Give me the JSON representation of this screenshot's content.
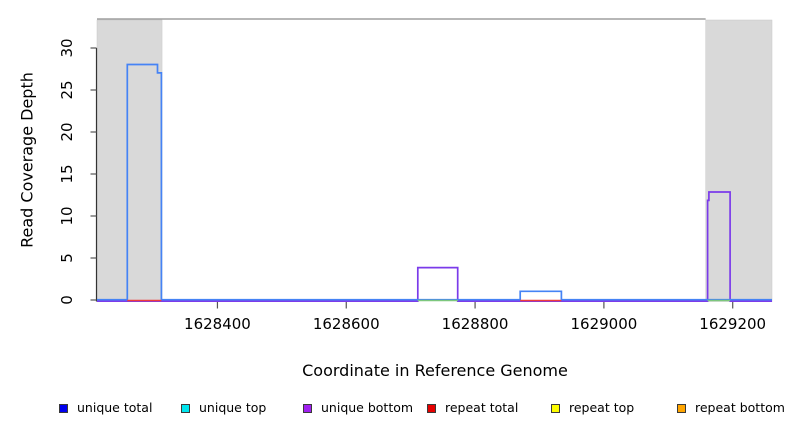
{
  "figure": {
    "x_axis_label": "Coordinate in Reference Genome",
    "y_axis_label": "Read Coverage Depth"
  },
  "chart_data": {
    "type": "line",
    "subtype": "genome-read-coverage-step-plot",
    "title": "",
    "xlabel": "Coordinate in Reference Genome",
    "ylabel": "Read Coverage Depth",
    "xlim": [
      1628213,
      1629261
    ],
    "ylim": [
      0,
      33.4
    ],
    "grid": false,
    "x_tick_values": [
      1628400,
      1628600,
      1628800,
      1629000,
      1629200
    ],
    "x_tick_labels": [
      "1628400",
      "1628600",
      "1628800",
      "1629000",
      "1629200"
    ],
    "y_tick_values": [
      0,
      5,
      10,
      15,
      20,
      25,
      30
    ],
    "y_tick_labels": [
      "0",
      "5",
      "10",
      "15",
      "20",
      "25",
      "30"
    ],
    "plot_border_top_color": "#8c8c8c",
    "axis_color": "#333333",
    "tick_color": "#555555",
    "shaded_region_color": "#d9d9d9",
    "shaded_regions": [
      {
        "name": "masked-region-left",
        "x0": 1628213,
        "x1": 1628314
      },
      {
        "name": "masked-region-right",
        "x0": 1629158,
        "x1": 1629261
      }
    ],
    "series": [
      {
        "name": "unique total",
        "color": "#4583f5",
        "points": [
          [
            1628213,
            0
          ],
          [
            1628260,
            0
          ],
          [
            1628260,
            28
          ],
          [
            1628307,
            28
          ],
          [
            1628307,
            27
          ],
          [
            1628313,
            27
          ],
          [
            1628313,
            0
          ],
          [
            1628870,
            0
          ],
          [
            1628870,
            1
          ],
          [
            1628934,
            1
          ],
          [
            1628934,
            0
          ],
          [
            1629261,
            0
          ]
        ]
      },
      {
        "name": "unique bottom",
        "color": "#7b3bea",
        "points": [
          [
            1628213,
            0
          ],
          [
            1628711,
            0
          ],
          [
            1628711,
            4
          ],
          [
            1628773,
            4
          ],
          [
            1628773,
            0
          ],
          [
            1629161,
            0
          ],
          [
            1629161,
            12
          ],
          [
            1629163,
            12
          ],
          [
            1629163,
            13
          ],
          [
            1629196,
            13
          ],
          [
            1629196,
            0
          ],
          [
            1629261,
            0
          ]
        ]
      }
    ],
    "zero_level_overlays": [
      {
        "color": "#ee3b3b",
        "x0": 1628260,
        "x1": 1628313
      },
      {
        "color": "#ee3b3b",
        "x0": 1628870,
        "x1": 1628934
      },
      {
        "color": "#7dc77d",
        "x0": 1628711,
        "x1": 1628773
      },
      {
        "color": "#7dc77d",
        "x0": 1629161,
        "x1": 1629196
      }
    ],
    "legend": {
      "position": "bottom",
      "items": [
        {
          "label": "unique total",
          "color": "#0000ee"
        },
        {
          "label": "unique top",
          "color": "#00e5ee"
        },
        {
          "label": "unique bottom",
          "color": "#a020f0"
        },
        {
          "label": "repeat total",
          "color": "#e60000"
        },
        {
          "label": "repeat top",
          "color": "#fdfd00"
        },
        {
          "label": "repeat bottom",
          "color": "#ffa500"
        }
      ]
    }
  }
}
